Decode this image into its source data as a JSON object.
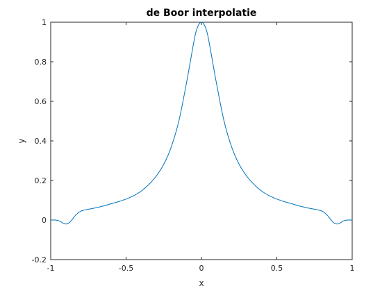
{
  "chart_data": {
    "type": "line",
    "title": "de Boor interpolatie",
    "xlabel": "x",
    "ylabel": "y",
    "xlim": [
      -1,
      1
    ],
    "ylim": [
      -0.2,
      1
    ],
    "xticks": [
      -1,
      -0.5,
      0,
      0.5,
      1
    ],
    "xtick_labels": [
      "-1",
      "-0.5",
      "0",
      "0.5",
      "1"
    ],
    "yticks": [
      -0.2,
      0,
      0.2,
      0.4,
      0.6,
      0.8,
      1
    ],
    "ytick_labels": [
      "-0.2",
      "0",
      "0.2",
      "0.4",
      "0.6",
      "0.8",
      "1"
    ],
    "grid": false,
    "legend": "none",
    "colors": {
      "line": "#0072BD",
      "axes": "#262626",
      "background": "#ffffff"
    },
    "series": [
      {
        "x": [
          -1,
          -0.97,
          -0.94,
          -0.92,
          -0.9,
          -0.88,
          -0.86,
          -0.84,
          -0.82,
          -0.8,
          -0.78,
          -0.76,
          -0.74,
          -0.7,
          -0.65,
          -0.6,
          -0.55,
          -0.5,
          -0.45,
          -0.4,
          -0.35,
          -0.3,
          -0.25,
          -0.2,
          -0.15,
          -0.1,
          -0.06,
          -0.04,
          -0.02,
          0,
          0.02,
          0.04,
          0.06,
          0.1,
          0.15,
          0.2,
          0.25,
          0.3,
          0.35,
          0.4,
          0.45,
          0.5,
          0.55,
          0.6,
          0.65,
          0.7,
          0.74,
          0.76,
          0.78,
          0.8,
          0.82,
          0.84,
          0.86,
          0.88,
          0.9,
          0.92,
          0.94,
          0.97,
          1
        ],
        "y": [
          0,
          0,
          -0.005,
          -0.015,
          -0.02,
          -0.015,
          0.0,
          0.02,
          0.035,
          0.045,
          0.05,
          0.053,
          0.056,
          0.062,
          0.071,
          0.082,
          0.093,
          0.106,
          0.123,
          0.146,
          0.179,
          0.222,
          0.282,
          0.37,
          0.5,
          0.69,
          0.86,
          0.94,
          0.985,
          1.0,
          0.985,
          0.94,
          0.86,
          0.69,
          0.5,
          0.37,
          0.282,
          0.222,
          0.179,
          0.146,
          0.123,
          0.106,
          0.093,
          0.082,
          0.071,
          0.062,
          0.056,
          0.053,
          0.05,
          0.045,
          0.035,
          0.02,
          0.0,
          -0.015,
          -0.02,
          -0.015,
          -0.005,
          0,
          0
        ]
      }
    ]
  }
}
